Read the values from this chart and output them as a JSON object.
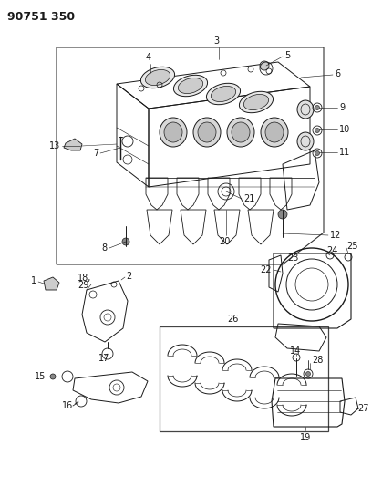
{
  "title": "90751 350",
  "bg_color": "#ffffff",
  "line_color": "#1a1a1a",
  "title_fontsize": 9,
  "label_fontsize": 7,
  "fig_width": 4.08,
  "fig_height": 5.33,
  "dpi": 100
}
